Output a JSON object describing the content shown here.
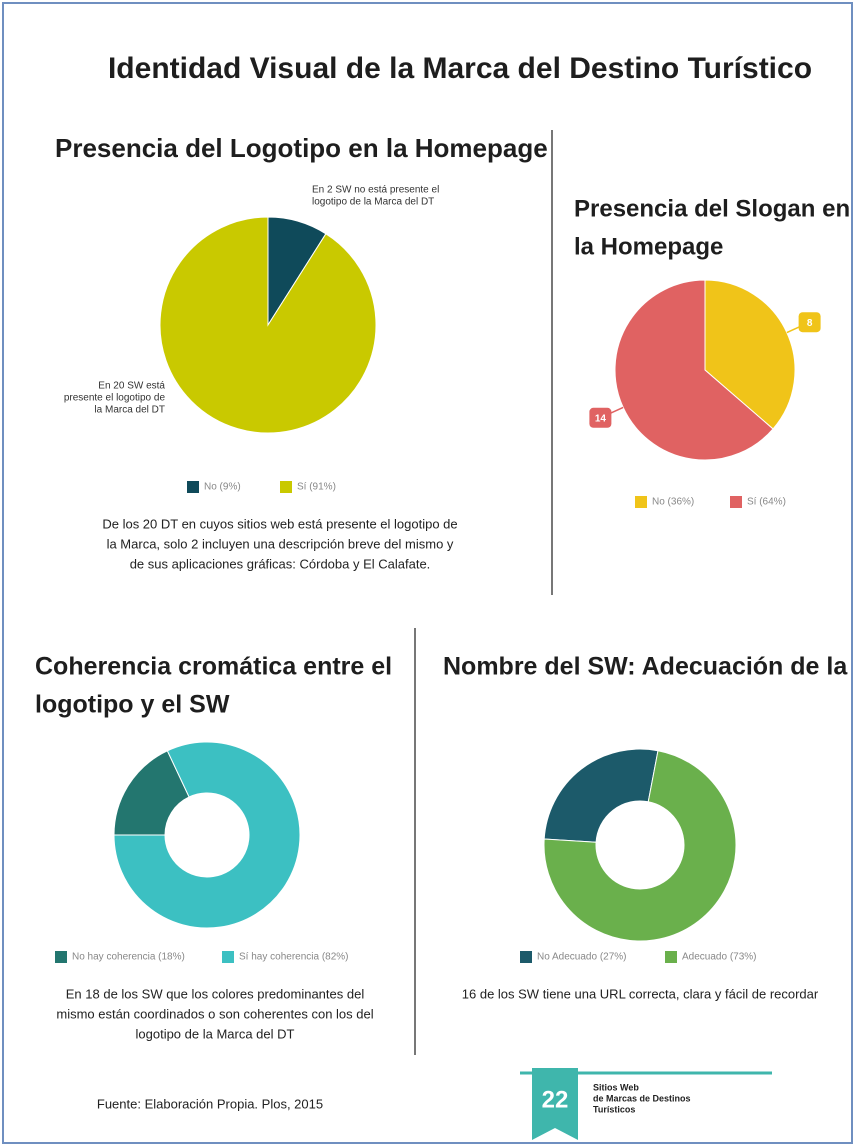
{
  "title": "Identidad Visual de la Marca del Destino Turístico",
  "footer": "Fuente: Elaboración Propia. Plos, 2015",
  "badge": {
    "number": "22",
    "lines": [
      "Sitios Web",
      "de Marcas de Destinos",
      "Turísticos"
    ]
  },
  "chart_data": [
    {
      "type": "pie",
      "title": [
        "Presencia del Logotipo en la Homepage"
      ],
      "categories": [
        "No (9%)",
        "Sí (91%)"
      ],
      "values": [
        9,
        91
      ],
      "colors": [
        "#0f4a5a",
        "#c9c900"
      ],
      "annotations": [
        [
          "En 2 SW no está presente el",
          "logotipo de la Marca del DT"
        ],
        [
          "En 20 SW está",
          "presente el logotipo de",
          "la Marca del DT"
        ]
      ],
      "note": [
        "De los 20 DT en cuyos sitios web está presente el logotipo de",
        "la Marca, solo 2 incluyen una descripción breve del mismo y",
        "de sus aplicaciones gráficas: Córdoba y El Calafate."
      ]
    },
    {
      "type": "pie",
      "title": [
        "Presencia del Slogan en",
        "la Homepage"
      ],
      "categories": [
        "No (36%)",
        "Sí (64%)"
      ],
      "values": [
        8,
        14
      ],
      "colors": [
        "#f0c419",
        "#e06262"
      ],
      "data_labels": true
    },
    {
      "type": "donut",
      "title": [
        "Coherencia cromática entre el",
        "logotipo y el SW"
      ],
      "categories": [
        "No hay coherencia (18%)",
        "Sí hay coherencia (82%)"
      ],
      "values": [
        18,
        82
      ],
      "colors": [
        "#23766f",
        "#3cc0c2"
      ],
      "note": [
        "En 18 de los SW que los colores predominantes del",
        "mismo están coordinados o son coherentes con los del",
        "logotipo de la Marca del DT"
      ]
    },
    {
      "type": "donut",
      "title": [
        "Nombre del SW: Adecuación de la URL"
      ],
      "categories": [
        "No Adecuado (27%)",
        "Adecuado (73%)"
      ],
      "values": [
        27,
        73
      ],
      "colors": [
        "#1c5a6a",
        "#6ab04c"
      ],
      "note": [
        "16 de los SW tiene una URL correcta, clara y fácil de recordar"
      ]
    }
  ]
}
